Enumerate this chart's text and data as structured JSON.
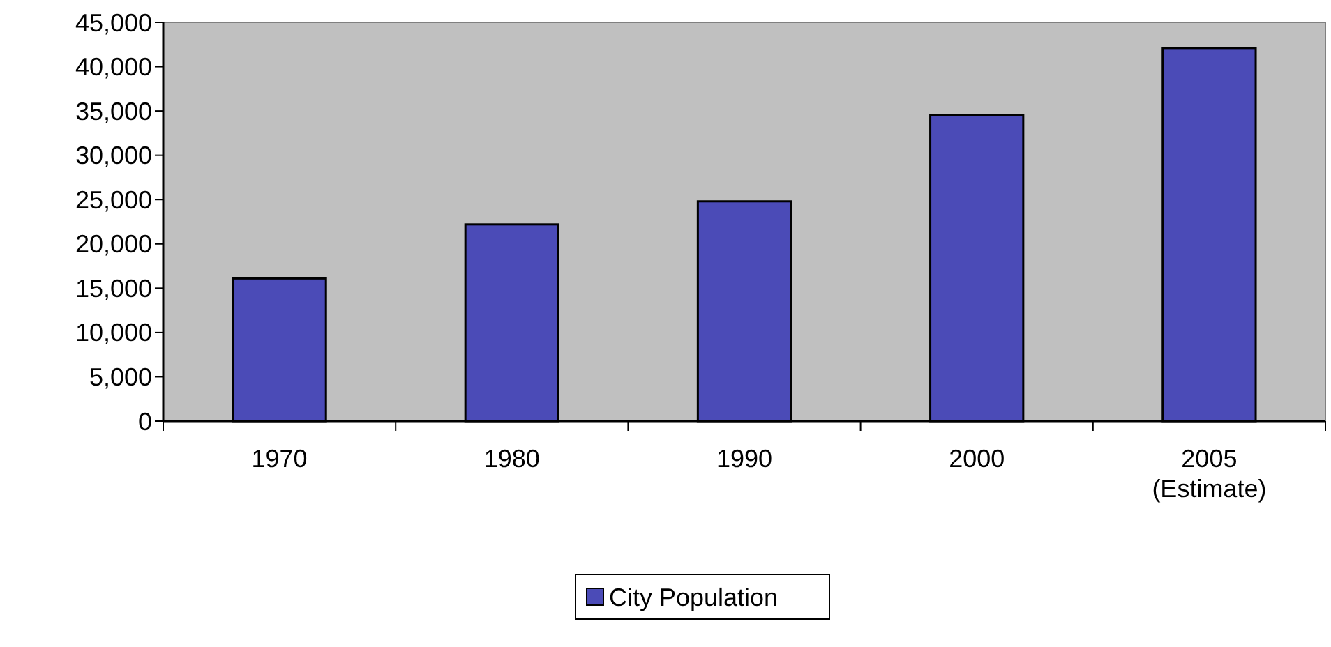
{
  "chart_data": {
    "type": "bar",
    "categories": [
      "1970",
      "1980",
      "1990",
      "2000",
      "2005\n(Estimate)"
    ],
    "series": [
      {
        "name": "City Population",
        "color": "#4b4bb7",
        "values": [
          16100,
          22200,
          24800,
          34500,
          42100
        ]
      }
    ],
    "ylim": [
      0,
      45000
    ],
    "yticks": [
      {
        "value": 0,
        "label": "0"
      },
      {
        "value": 5000,
        "label": "5,000"
      },
      {
        "value": 10000,
        "label": "10,000"
      },
      {
        "value": 15000,
        "label": "15,000"
      },
      {
        "value": 20000,
        "label": "20,000"
      },
      {
        "value": 25000,
        "label": "25,000"
      },
      {
        "value": 30000,
        "label": "30,000"
      },
      {
        "value": 35000,
        "label": "35,000"
      },
      {
        "value": 40000,
        "label": "40,000"
      },
      {
        "value": 45000,
        "label": "45,000"
      }
    ],
    "grid": false,
    "legend": "bottom"
  }
}
